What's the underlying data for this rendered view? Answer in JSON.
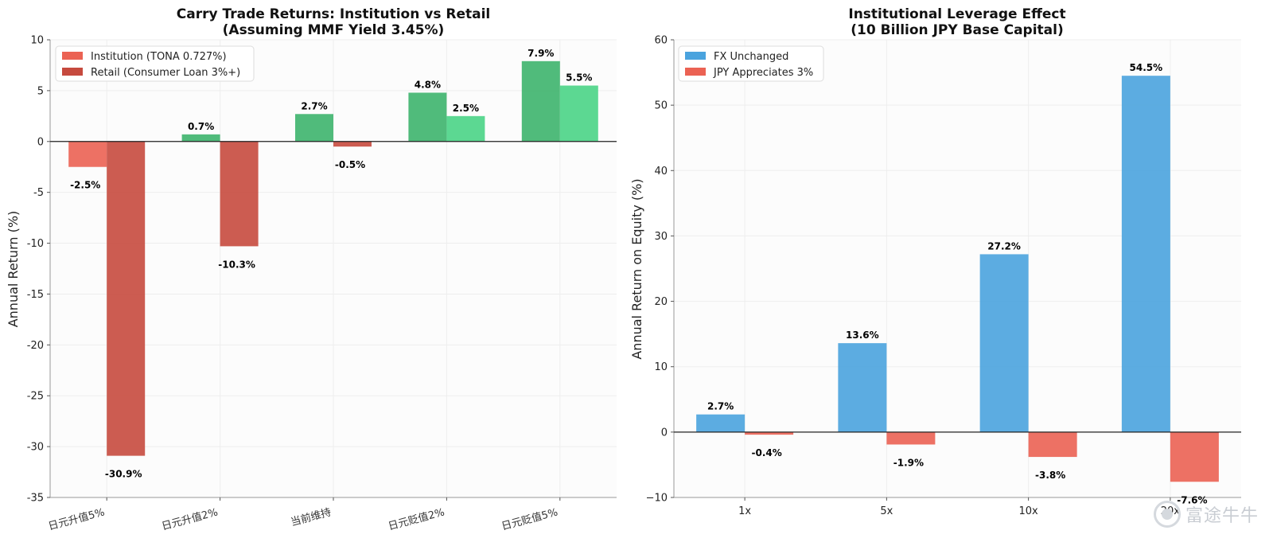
{
  "chart_data": [
    {
      "type": "bar",
      "title": "Carry Trade Returns: Institution vs Retail\n(Assuming MMF Yield 3.45%)",
      "xlabel": "",
      "ylabel": "Annual Return (%)",
      "ylim": [
        -35,
        10
      ],
      "yticks": [
        10,
        5,
        0,
        -5,
        -10,
        -15,
        -20,
        -25,
        -30,
        -35
      ],
      "ytick_labels": [
        "10",
        "5",
        "0",
        "-5",
        "-10",
        "-15",
        "-20",
        "-25",
        "-30",
        "-35"
      ],
      "categories": [
        "日元升值5%",
        "日元升值2%",
        "当前维持",
        "日元贬值2%",
        "日元贬值5%"
      ],
      "series": [
        {
          "name": "Institution (TONA 0.727%)",
          "values": [
            -2.5,
            0.7,
            2.7,
            4.8,
            7.9
          ],
          "labels": [
            "-2.5%",
            "0.7%",
            "2.7%",
            "4.8%",
            "7.9%"
          ],
          "pos_color": "#3db46d",
          "neg_color": "#eb6253"
        },
        {
          "name": "Retail (Consumer Loan 3%+)",
          "values": [
            -30.9,
            -10.3,
            -0.5,
            2.5,
            5.5
          ],
          "labels": [
            "-30.9%",
            "-10.3%",
            "-0.5%",
            "2.5%",
            "5.5%"
          ],
          "pos_color": "#4ad486",
          "neg_color": "#c64a3e"
        }
      ],
      "legend_colors": [
        "#eb6253",
        "#c64a3e"
      ],
      "legend_position": "top-left",
      "grid": true
    },
    {
      "type": "bar",
      "title": "Institutional Leverage Effect\n(10 Billion JPY Base Capital)",
      "xlabel": "",
      "ylabel": "Annual Return on Equity (%)",
      "ylim": [
        -10,
        60
      ],
      "yticks": [
        60,
        50,
        40,
        30,
        20,
        10,
        0,
        -10
      ],
      "ytick_labels": [
        "60",
        "50",
        "40",
        "30",
        "20",
        "10",
        "0",
        "−10"
      ],
      "categories": [
        "1x",
        "5x",
        "10x",
        "20x"
      ],
      "series": [
        {
          "name": "FX Unchanged",
          "values": [
            2.7,
            13.6,
            27.2,
            54.5
          ],
          "labels": [
            "2.7%",
            "13.6%",
            "27.2%",
            "54.5%"
          ],
          "pos_color": "#4aa3de",
          "neg_color": "#4aa3de"
        },
        {
          "name": "JPY Appreciates 3%",
          "values": [
            -0.4,
            -1.9,
            -3.8,
            -7.6
          ],
          "labels": [
            "-0.4%",
            "-1.9%",
            "-3.8%",
            "-7.6%"
          ],
          "pos_color": "#eb6253",
          "neg_color": "#eb6253"
        }
      ],
      "legend_colors": [
        "#4aa3de",
        "#eb6253"
      ],
      "legend_position": "top-left",
      "grid": true
    }
  ],
  "watermark": {
    "text": "富途牛牛"
  }
}
